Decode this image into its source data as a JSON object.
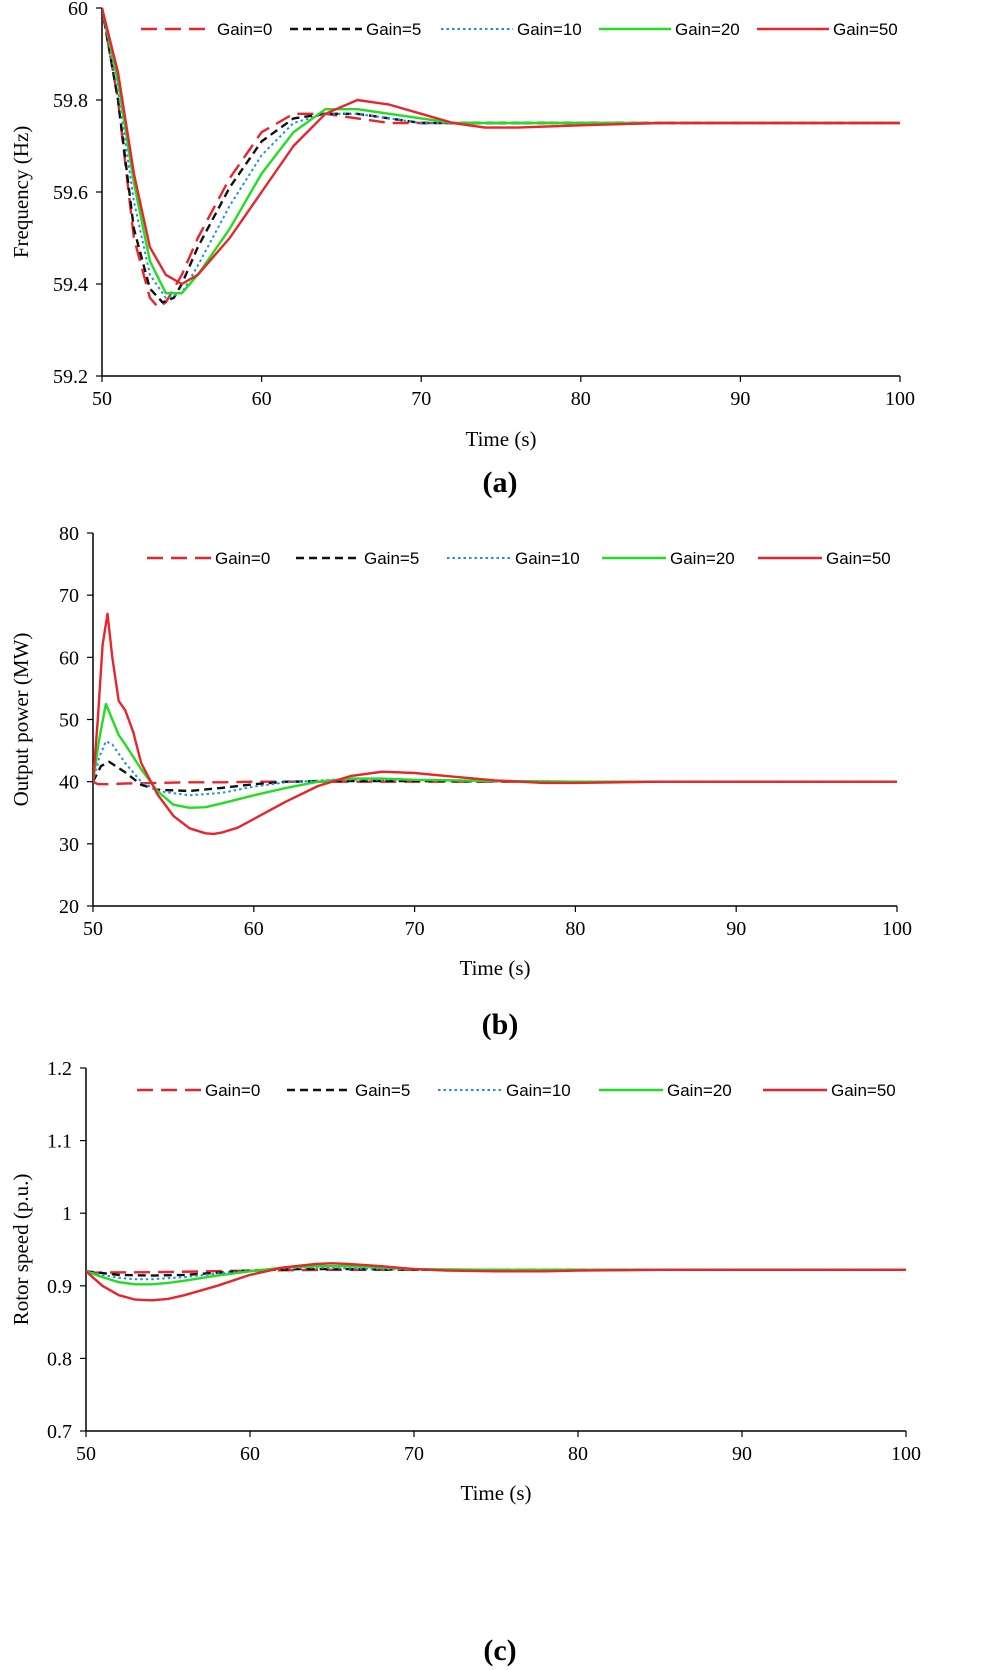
{
  "figure": {
    "panels": [
      "(a)",
      "(b)",
      "(c)"
    ]
  },
  "colors": {
    "gain0": "#e8252c",
    "gain5": "#111111",
    "gain10": "#1f8fdc",
    "gain20": "#22dd22",
    "gain50": "#e8252c"
  },
  "chart_data": [
    {
      "type": "line",
      "caption": "(a)",
      "title": "",
      "xlabel": "Time (s)",
      "ylabel": "Frequency (Hz)",
      "xlim": [
        50,
        100
      ],
      "ylim": [
        59.2,
        60.0
      ],
      "xticks": [
        50,
        60,
        70,
        80,
        90,
        100
      ],
      "yticks": [
        59.2,
        59.4,
        59.6,
        59.8,
        60
      ],
      "ytick_labels": [
        "59.2",
        "59.4",
        "59.6",
        "59.8",
        "60"
      ],
      "legend": "top",
      "series": [
        {
          "name": "Gain=0",
          "style": "dashed-long",
          "color": "#e8252c",
          "x": [
            50,
            51,
            52,
            53,
            53.5,
            54,
            55,
            56,
            58,
            60,
            62,
            64,
            66,
            68,
            70,
            72,
            75,
            80,
            90,
            100
          ],
          "y": [
            60,
            59.8,
            59.5,
            59.37,
            59.35,
            59.36,
            59.42,
            59.5,
            59.63,
            59.73,
            59.77,
            59.77,
            59.76,
            59.75,
            59.75,
            59.75,
            59.75,
            59.75,
            59.75,
            59.75
          ]
        },
        {
          "name": "Gain=5",
          "style": "dashed",
          "color": "#111111",
          "x": [
            50,
            51,
            52,
            53,
            53.8,
            54.5,
            55,
            56,
            58,
            60,
            62,
            64,
            66,
            68,
            70,
            72,
            75,
            80,
            90,
            100
          ],
          "y": [
            60,
            59.8,
            59.52,
            59.39,
            59.36,
            59.37,
            59.4,
            59.48,
            59.61,
            59.71,
            59.76,
            59.77,
            59.77,
            59.76,
            59.75,
            59.75,
            59.75,
            59.75,
            59.75,
            59.75
          ]
        },
        {
          "name": "Gain=10",
          "style": "dotted",
          "color": "#1f8fdc",
          "x": [
            50,
            51,
            52,
            53,
            54,
            55,
            56,
            58,
            60,
            62,
            64,
            66,
            68,
            70,
            72,
            75,
            80,
            90,
            100
          ],
          "y": [
            60,
            59.82,
            59.58,
            59.42,
            59.37,
            59.38,
            59.44,
            59.57,
            59.68,
            59.75,
            59.77,
            59.77,
            59.76,
            59.75,
            59.75,
            59.75,
            59.75,
            59.75,
            59.75
          ]
        },
        {
          "name": "Gain=20",
          "style": "solid",
          "color": "#22dd22",
          "x": [
            50,
            51,
            52,
            53,
            54,
            55,
            56,
            58,
            60,
            62,
            64,
            66,
            68,
            70,
            72,
            75,
            80,
            90,
            100
          ],
          "y": [
            60,
            59.84,
            59.62,
            59.45,
            59.38,
            59.38,
            59.42,
            59.52,
            59.64,
            59.73,
            59.78,
            59.78,
            59.77,
            59.76,
            59.75,
            59.75,
            59.75,
            59.75,
            59.75
          ]
        },
        {
          "name": "Gain=50",
          "style": "solid",
          "color": "#e8252c",
          "x": [
            50,
            51,
            52,
            53,
            54,
            55,
            56,
            58,
            60,
            62,
            64,
            66,
            68,
            70,
            72,
            74,
            76,
            80,
            85,
            90,
            100
          ],
          "y": [
            60,
            59.86,
            59.64,
            59.48,
            59.42,
            59.4,
            59.42,
            59.5,
            59.6,
            59.7,
            59.77,
            59.8,
            59.79,
            59.77,
            59.75,
            59.74,
            59.74,
            59.745,
            59.75,
            59.75,
            59.75
          ]
        }
      ]
    },
    {
      "type": "line",
      "caption": "(b)",
      "title": "",
      "xlabel": "Time (s)",
      "ylabel": "Output power (MW)",
      "xlim": [
        50,
        100
      ],
      "ylim": [
        20,
        80
      ],
      "xticks": [
        50,
        60,
        70,
        80,
        90,
        100
      ],
      "yticks": [
        20,
        30,
        40,
        50,
        60,
        70,
        80
      ],
      "ytick_labels": [
        "20",
        "30",
        "40",
        "50",
        "60",
        "70",
        "80"
      ],
      "legend": "top",
      "series": [
        {
          "name": "Gain=0",
          "style": "dashed-long",
          "color": "#e8252c",
          "x": [
            50,
            50.3,
            51,
            52,
            54,
            56,
            58,
            60,
            65,
            70,
            80,
            90,
            100
          ],
          "y": [
            40,
            39.6,
            39.6,
            39.7,
            39.8,
            39.9,
            39.9,
            40,
            40,
            40,
            40,
            40,
            40
          ]
        },
        {
          "name": "Gain=5",
          "style": "dashed",
          "color": "#111111",
          "x": [
            50,
            50.5,
            51,
            52,
            53,
            54,
            56,
            58,
            60,
            62,
            65,
            70,
            80,
            90,
            100
          ],
          "y": [
            40,
            42.5,
            43.2,
            41.5,
            39.5,
            38.7,
            38.5,
            39,
            39.6,
            40,
            40.1,
            40.1,
            40,
            40,
            40
          ]
        },
        {
          "name": "Gain=10",
          "style": "dotted",
          "color": "#1f8fdc",
          "x": [
            50,
            50.4,
            50.8,
            51.2,
            52,
            53,
            54,
            56,
            58,
            60,
            62,
            65,
            70,
            80,
            90,
            100
          ],
          "y": [
            40,
            44,
            46.5,
            46,
            43,
            40,
            38.5,
            37.8,
            38.2,
            39.2,
            39.9,
            40.3,
            40.3,
            40,
            40,
            40
          ]
        },
        {
          "name": "Gain=20",
          "style": "solid",
          "color": "#22dd22",
          "x": [
            50,
            50.4,
            50.8,
            51.2,
            51.6,
            52,
            53,
            54,
            55,
            56,
            57,
            58,
            60,
            62,
            64,
            66,
            68,
            70,
            75,
            80,
            90,
            100
          ],
          "y": [
            40,
            47,
            52.5,
            50,
            47.5,
            46,
            42,
            38.5,
            36.3,
            35.8,
            35.9,
            36.5,
            37.8,
            39,
            40,
            40.5,
            40.5,
            40.3,
            40.1,
            40,
            40,
            40
          ]
        },
        {
          "name": "Gain=50",
          "style": "solid",
          "color": "#e8252c",
          "x": [
            50,
            50.3,
            50.6,
            50.9,
            51.2,
            51.6,
            52,
            52.5,
            53,
            54,
            55,
            56,
            57,
            57.5,
            58,
            59,
            60,
            62,
            64,
            66,
            68,
            70,
            72,
            75,
            78,
            80,
            85,
            90,
            100
          ],
          "y": [
            40,
            50,
            62,
            67,
            60,
            53,
            51.5,
            48,
            43,
            38,
            34.5,
            32.5,
            31.7,
            31.6,
            31.8,
            32.6,
            34,
            36.8,
            39.3,
            40.9,
            41.6,
            41.4,
            40.9,
            40.2,
            39.8,
            39.8,
            40,
            40,
            40
          ]
        }
      ]
    },
    {
      "type": "line",
      "caption": "(c)",
      "title": "",
      "xlabel": "Time (s)",
      "ylabel": "Rotor speed (p.u.)",
      "xlim": [
        50,
        100
      ],
      "ylim": [
        0.7,
        1.2
      ],
      "xticks": [
        50,
        60,
        70,
        80,
        90,
        100
      ],
      "yticks": [
        0.7,
        0.8,
        0.9,
        1.0,
        1.1,
        1.2
      ],
      "ytick_labels": [
        "0.7",
        "0.8",
        "0.9",
        "1",
        "1.1",
        "1.2"
      ],
      "legend": "top",
      "series": [
        {
          "name": "Gain=0",
          "style": "dashed-long",
          "color": "#e8252c",
          "x": [
            50,
            55,
            60,
            65,
            70,
            80,
            90,
            100
          ],
          "y": [
            0.918,
            0.919,
            0.921,
            0.922,
            0.922,
            0.922,
            0.922,
            0.922
          ]
        },
        {
          "name": "Gain=5",
          "style": "dashed",
          "color": "#111111",
          "x": [
            50,
            52,
            54,
            56,
            58,
            60,
            63,
            66,
            70,
            80,
            90,
            100
          ],
          "y": [
            0.92,
            0.915,
            0.914,
            0.915,
            0.918,
            0.921,
            0.923,
            0.923,
            0.922,
            0.922,
            0.922,
            0.922
          ]
        },
        {
          "name": "Gain=10",
          "style": "dotted",
          "color": "#1f8fdc",
          "x": [
            50,
            51,
            52,
            53,
            54,
            56,
            58,
            60,
            62,
            64,
            66,
            70,
            80,
            90,
            100
          ],
          "y": [
            0.92,
            0.915,
            0.911,
            0.909,
            0.909,
            0.912,
            0.917,
            0.921,
            0.924,
            0.925,
            0.924,
            0.922,
            0.922,
            0.922,
            0.922
          ]
        },
        {
          "name": "Gain=20",
          "style": "solid",
          "color": "#22dd22",
          "x": [
            50,
            51,
            52,
            53,
            54,
            55,
            56,
            58,
            60,
            62,
            64,
            66,
            68,
            70,
            75,
            80,
            90,
            100
          ],
          "y": [
            0.92,
            0.912,
            0.905,
            0.902,
            0.902,
            0.904,
            0.907,
            0.914,
            0.92,
            0.925,
            0.927,
            0.927,
            0.925,
            0.923,
            0.922,
            0.922,
            0.922,
            0.922
          ]
        },
        {
          "name": "Gain=50",
          "style": "solid",
          "color": "#e8252c",
          "x": [
            50,
            51,
            52,
            53,
            54,
            55,
            56,
            58,
            60,
            62,
            64,
            65,
            66,
            68,
            70,
            72,
            75,
            78,
            80,
            85,
            90,
            100
          ],
          "y": [
            0.92,
            0.9,
            0.887,
            0.881,
            0.88,
            0.882,
            0.887,
            0.9,
            0.915,
            0.925,
            0.93,
            0.931,
            0.93,
            0.927,
            0.923,
            0.921,
            0.92,
            0.92,
            0.921,
            0.922,
            0.922,
            0.922
          ]
        }
      ]
    }
  ]
}
